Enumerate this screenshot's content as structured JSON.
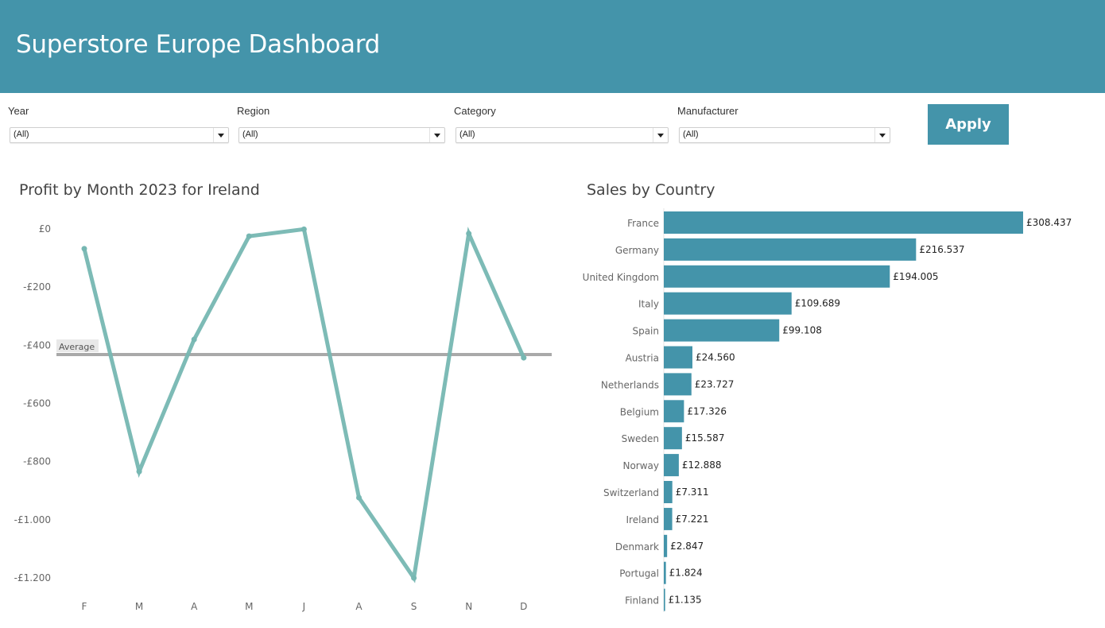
{
  "header": {
    "title": "Superstore Europe Dashboard"
  },
  "filters": [
    {
      "label": "Year",
      "value": "(All)"
    },
    {
      "label": "Region",
      "value": "(All)"
    },
    {
      "label": "Category",
      "value": "(All)"
    },
    {
      "label": "Manufacturer",
      "value": "(All)"
    }
  ],
  "apply_label": "Apply",
  "colors": {
    "brand": "#4494aa",
    "line": "#76b7b2",
    "average": "#a9a9a9"
  },
  "chart_data": [
    {
      "type": "line",
      "title": "Profit by Month 2023 for Ireland",
      "xlabel": "",
      "ylabel": "",
      "categories": [
        "F",
        "M",
        "A",
        "M",
        "J",
        "A",
        "S",
        "N",
        "D"
      ],
      "values": [
        -68,
        -834,
        -380,
        -25,
        -1,
        -924,
        -1200,
        -16,
        -443
      ],
      "ylim": [
        -1270,
        30
      ],
      "yticks": [
        0,
        -200,
        -400,
        -600,
        -800,
        -1000,
        -1200
      ],
      "ytick_labels": [
        "£0",
        "-£200",
        "-£400",
        "-£600",
        "-£800",
        "-£1.000",
        "-£1.200"
      ],
      "reference_line": {
        "label": "Average",
        "value": -432
      },
      "grid": false
    },
    {
      "type": "bar",
      "orientation": "horizontal",
      "title": "Sales by Country",
      "categories": [
        "France",
        "Germany",
        "United Kingdom",
        "Italy",
        "Spain",
        "Austria",
        "Netherlands",
        "Belgium",
        "Sweden",
        "Norway",
        "Switzerland",
        "Ireland",
        "Denmark",
        "Portugal",
        "Finland"
      ],
      "values": [
        308437,
        216537,
        194005,
        109689,
        99108,
        24560,
        23727,
        17326,
        15587,
        12888,
        7311,
        7221,
        2847,
        1824,
        1135
      ],
      "value_labels": [
        "£308.437",
        "£216.537",
        "£194.005",
        "£109.689",
        "£99.108",
        "£24.560",
        "£23.727",
        "£17.326",
        "£15.587",
        "£12.888",
        "£7.311",
        "£7.221",
        "£2.847",
        "£1.824",
        "£1.135"
      ],
      "xlim": [
        0,
        308437
      ],
      "grid": false
    }
  ]
}
